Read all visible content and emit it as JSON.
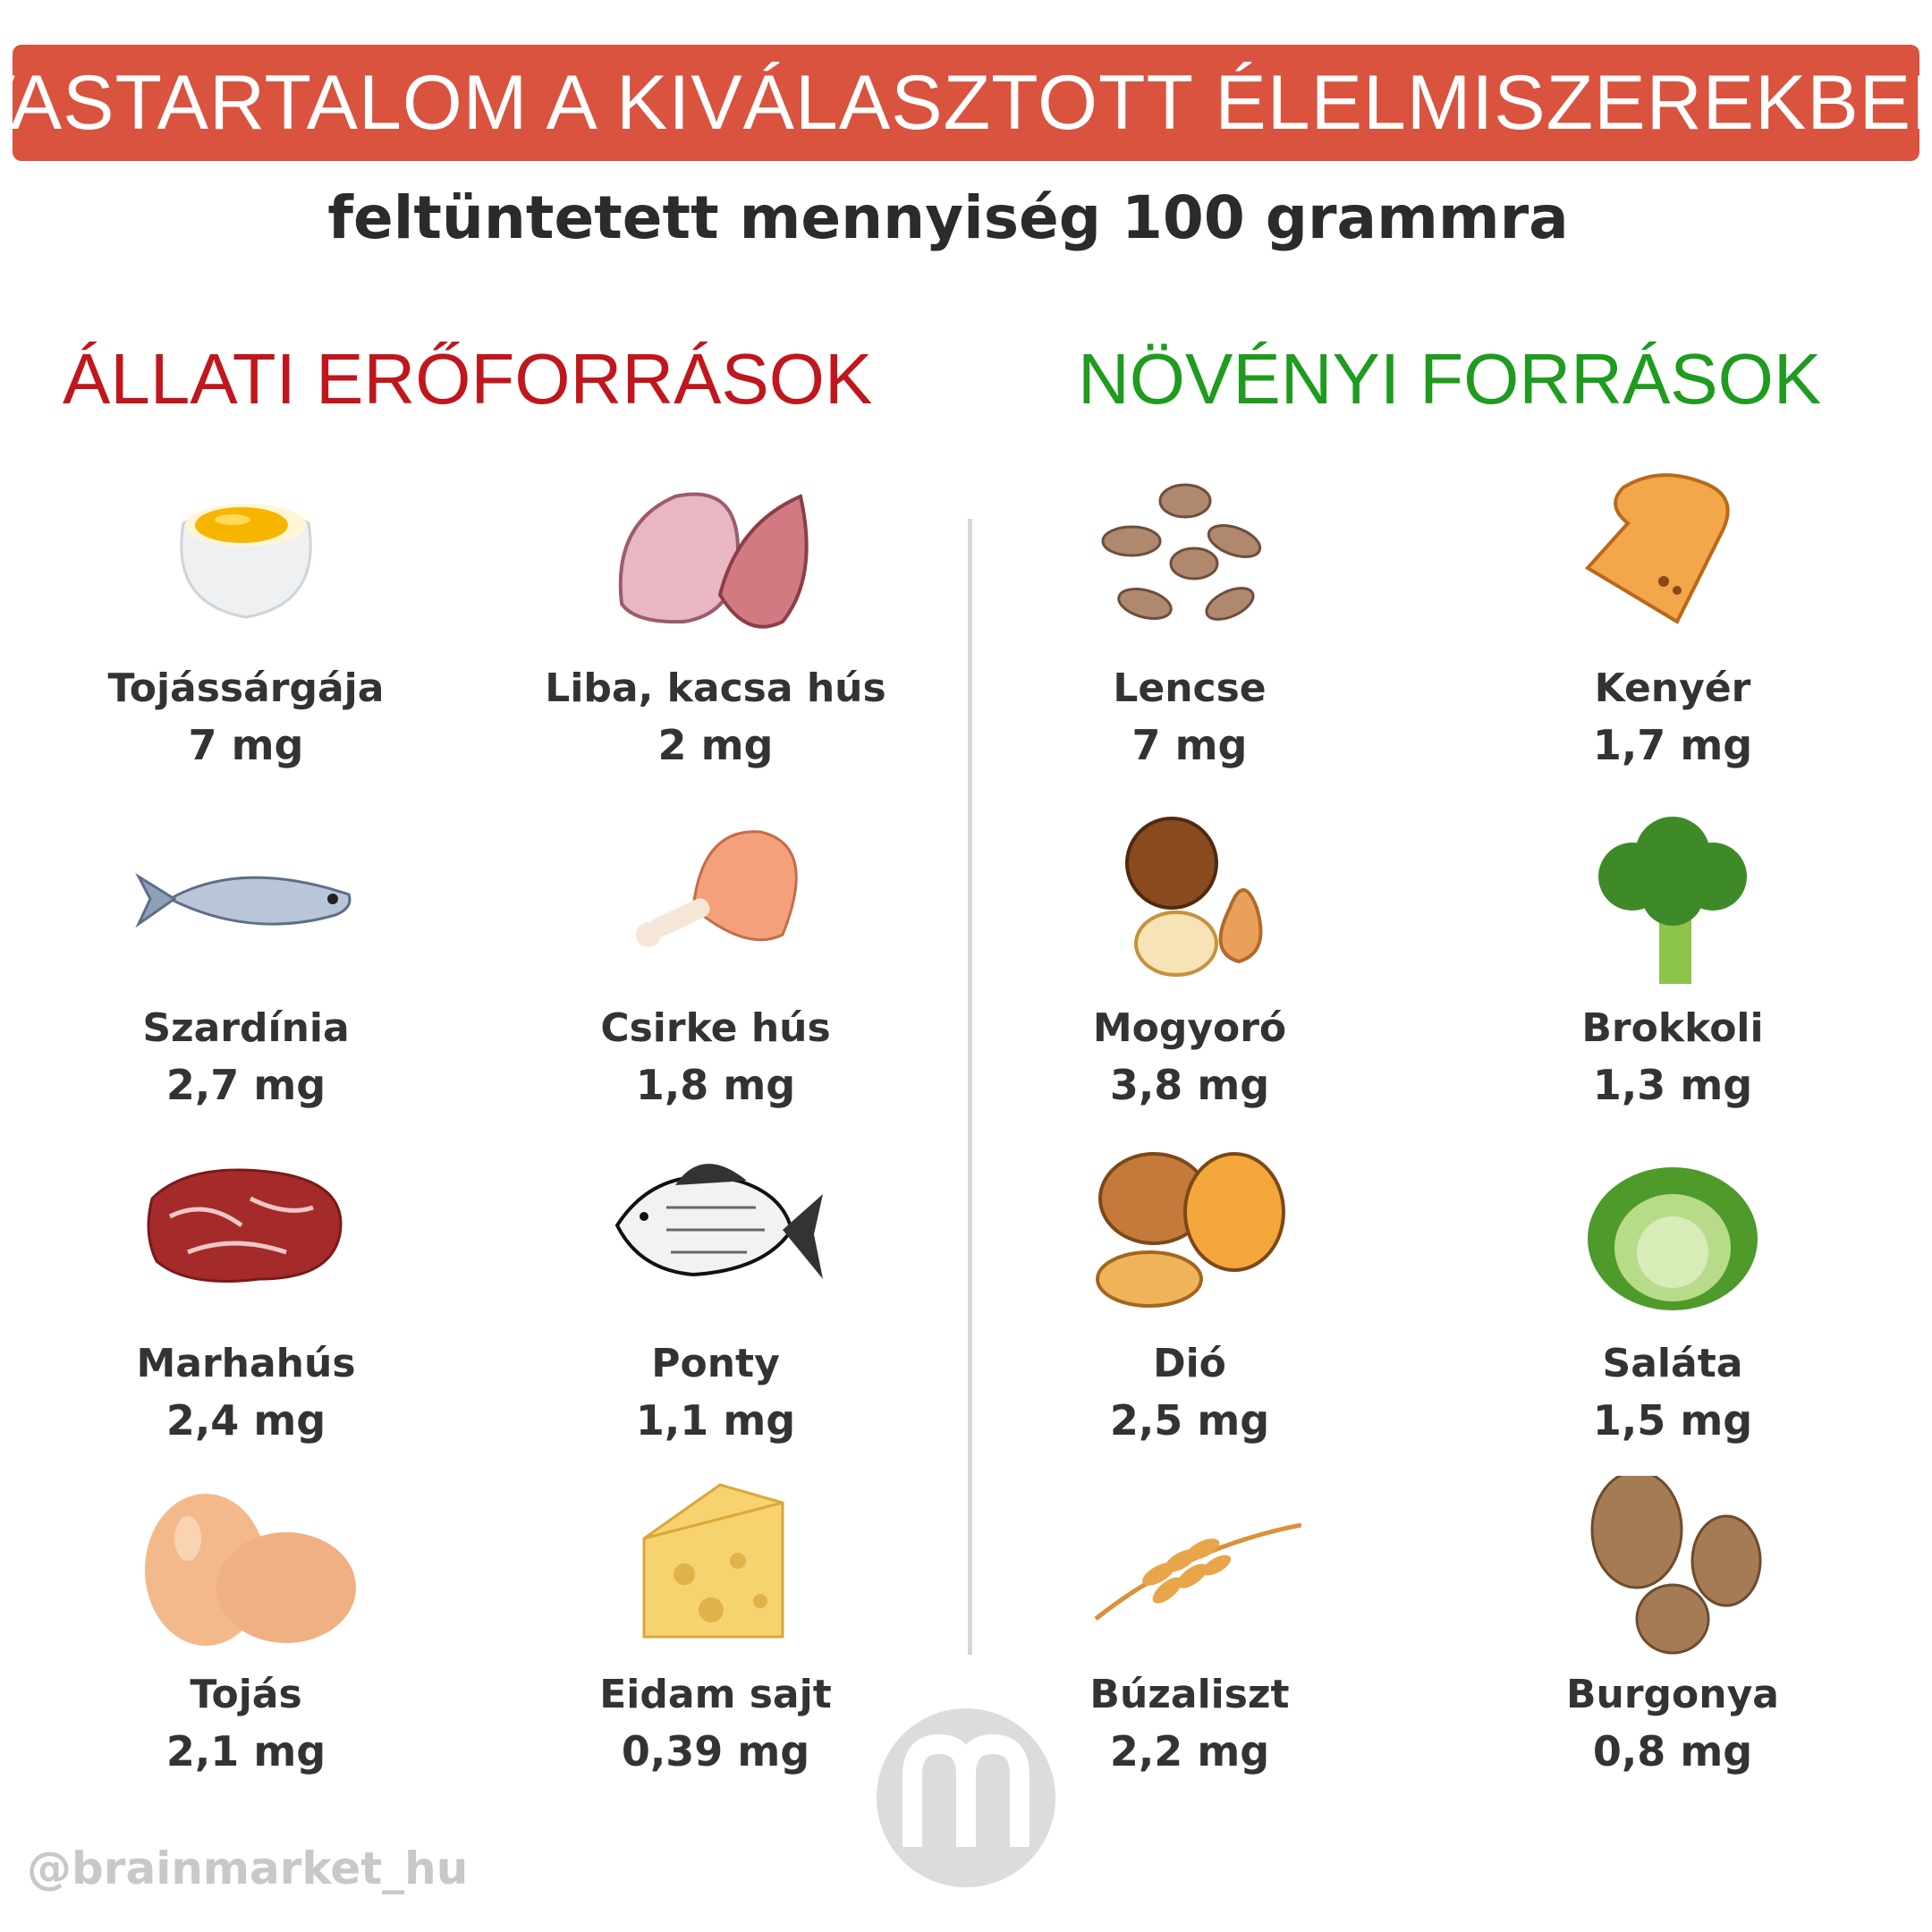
{
  "header": {
    "title": "VASTARTALOM A KIVÁLASZTOTT ÉLELMISZEREKBEN",
    "subtitle": "feltüntetett mennyiség 100 grammra",
    "banner_color": "#d9533f"
  },
  "sections": {
    "animal": {
      "title": "ÁLLATI ERŐFORRÁSOK",
      "color": "#c0161c",
      "items": [
        {
          "name": "Tojássárgája",
          "value": "7 mg",
          "icon": "egg-yolk-icon"
        },
        {
          "name": "Liba, kacsa hús",
          "value": "2 mg",
          "icon": "poultry-breast-icon"
        },
        {
          "name": "Szardínia",
          "value": "2,7 mg",
          "icon": "sardine-icon"
        },
        {
          "name": "Csirke hús",
          "value": "1,8 mg",
          "icon": "chicken-leg-icon"
        },
        {
          "name": "Marhahús",
          "value": "2,4 mg",
          "icon": "beef-steak-icon"
        },
        {
          "name": "Ponty",
          "value": "1,1 mg",
          "icon": "carp-icon"
        },
        {
          "name": "Tojás",
          "value": "2,1 mg",
          "icon": "eggs-icon"
        },
        {
          "name": "Eidam sajt",
          "value": "0,39 mg",
          "icon": "cheese-icon"
        }
      ]
    },
    "plant": {
      "title": "NÖVÉNYI FORRÁSOK",
      "color": "#1f9b1f",
      "items": [
        {
          "name": "Lencse",
          "value": "7 mg",
          "icon": "lentils-icon"
        },
        {
          "name": "Kenyér",
          "value": "1,7 mg",
          "icon": "bread-icon"
        },
        {
          "name": "Mogyoró",
          "value": "3,8 mg",
          "icon": "hazelnut-icon"
        },
        {
          "name": "Brokkoli",
          "value": "1,3 mg",
          "icon": "broccoli-icon"
        },
        {
          "name": "Dió",
          "value": "2,5 mg",
          "icon": "walnut-icon"
        },
        {
          "name": "Saláta",
          "value": "1,5 mg",
          "icon": "cabbage-icon"
        },
        {
          "name": "Búzaliszt",
          "value": "2,2 mg",
          "icon": "wheat-icon"
        },
        {
          "name": "Burgonya",
          "value": "0,8 mg",
          "icon": "potato-icon"
        }
      ]
    }
  },
  "footer": {
    "handle": "@brainmarket_hu",
    "logo": "brainmarket-logo-icon"
  }
}
